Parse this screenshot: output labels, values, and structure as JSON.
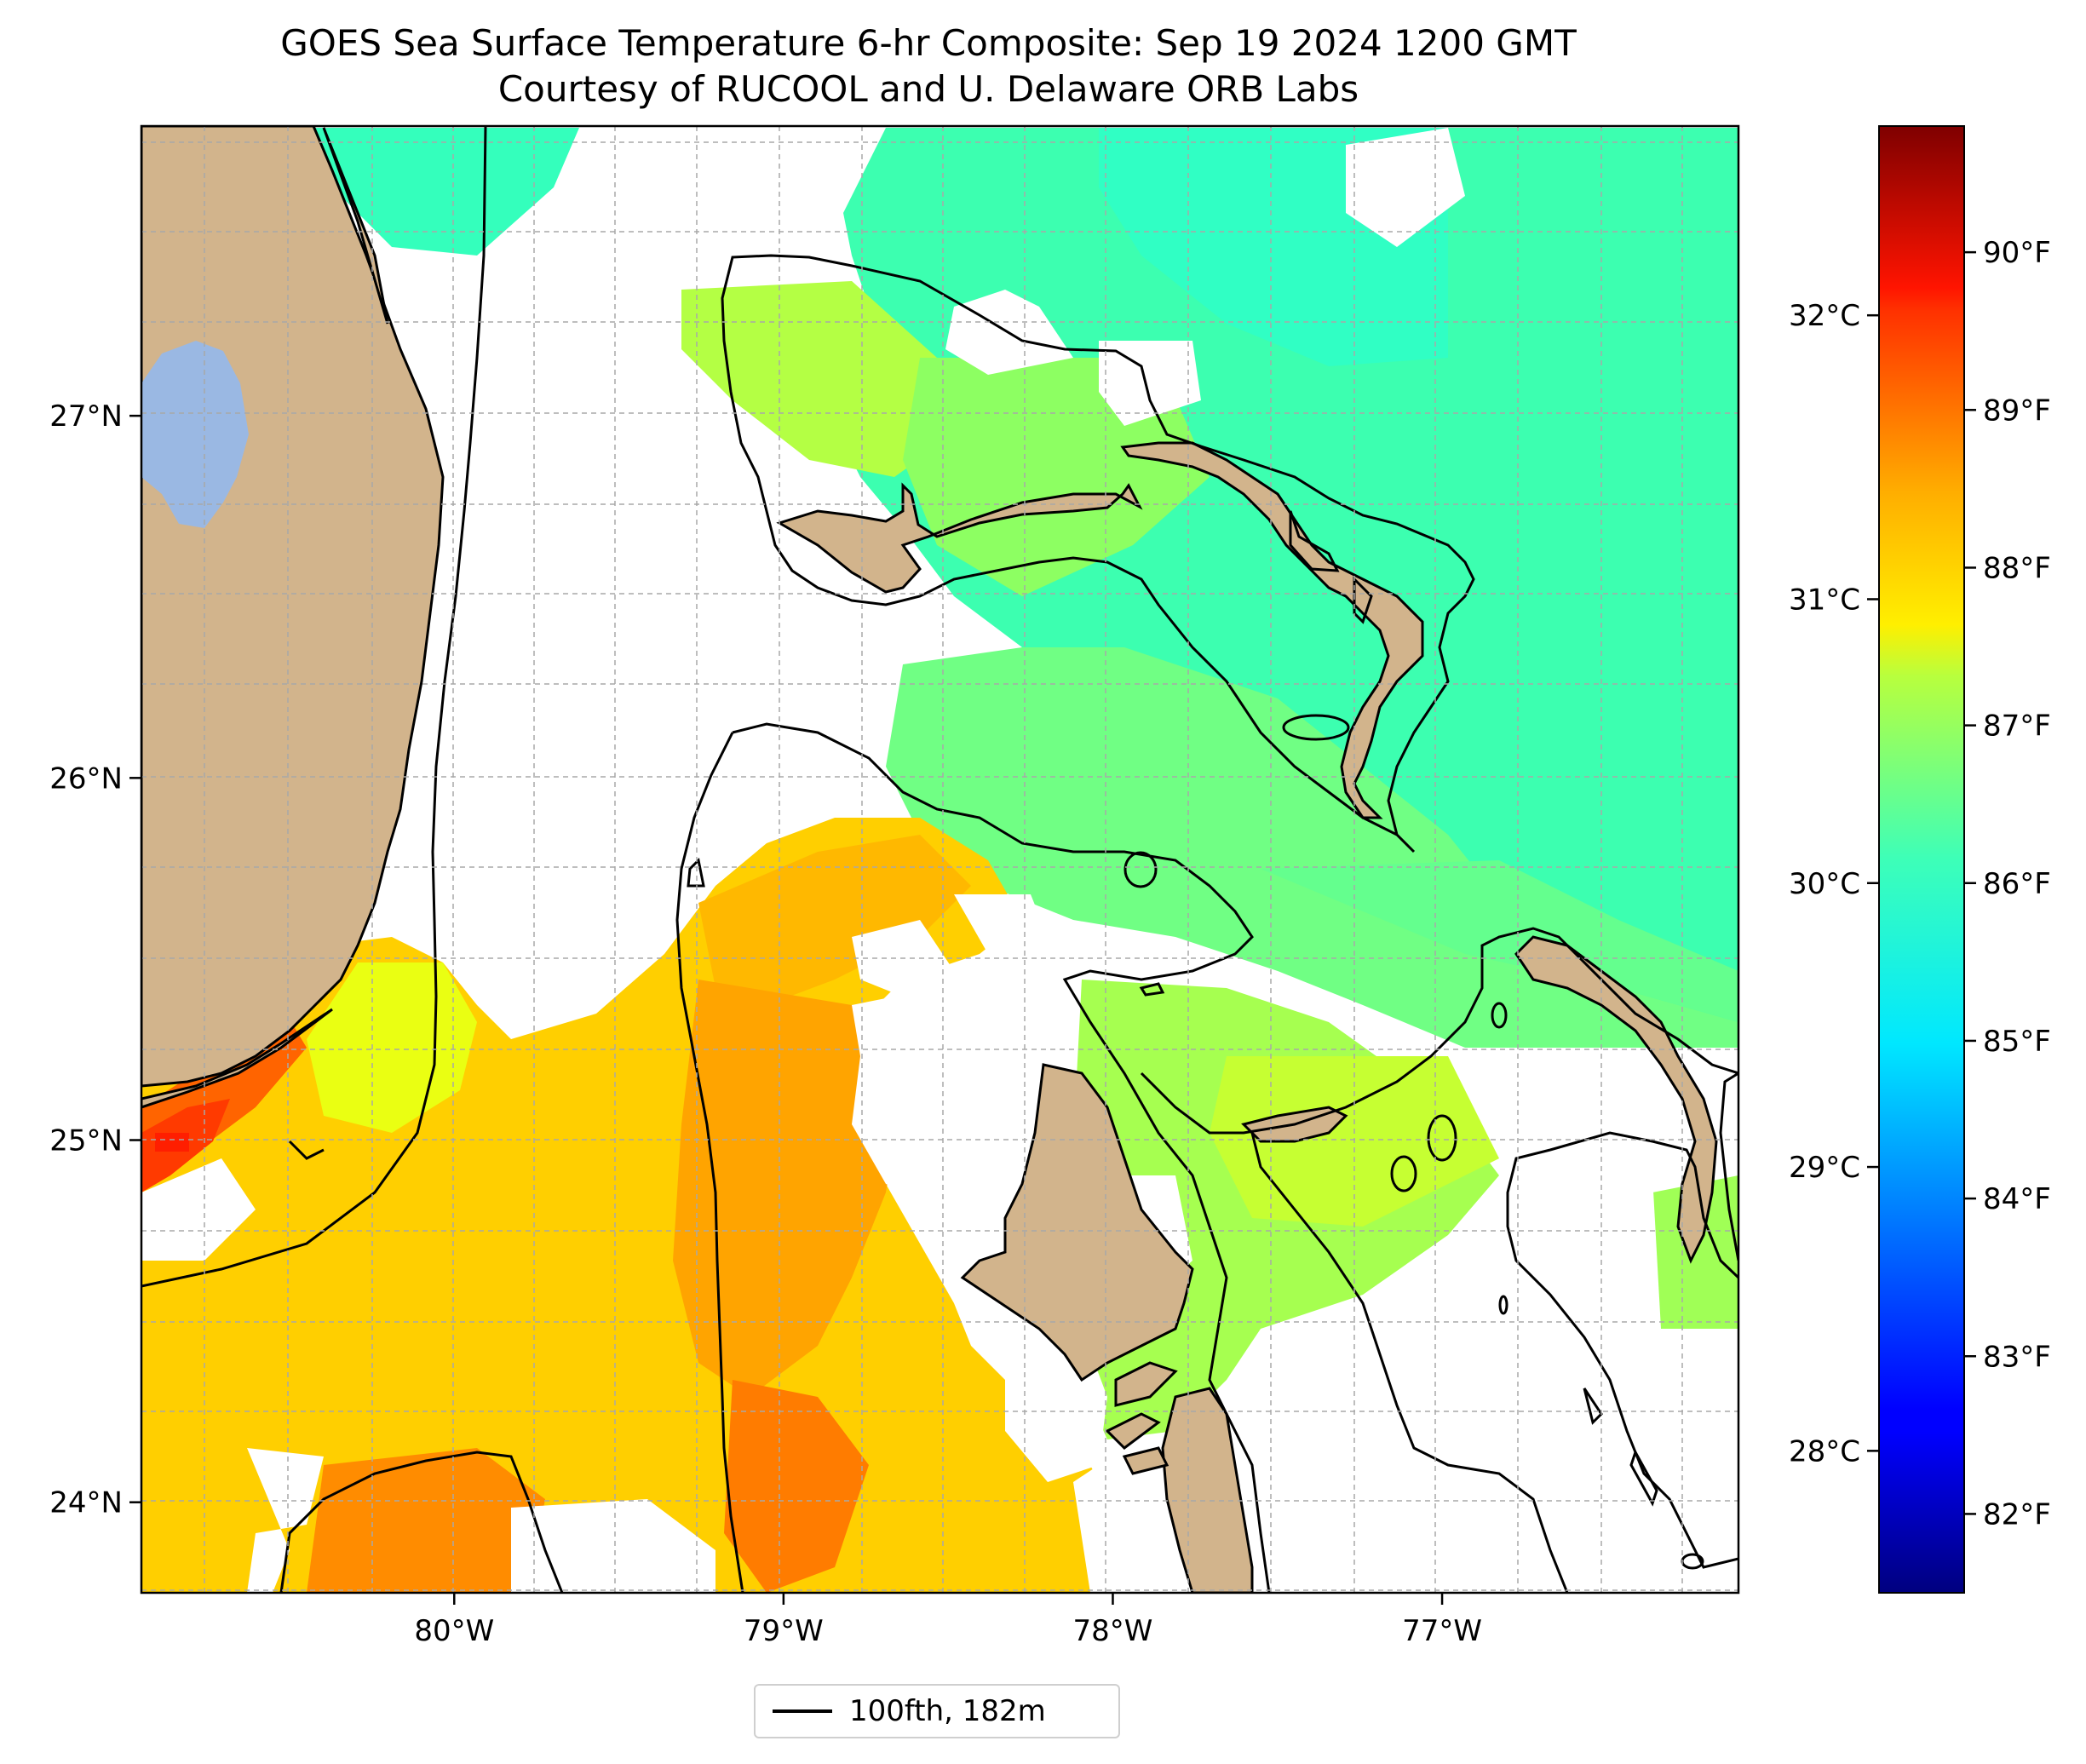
{
  "title": {
    "line1": "GOES Sea Surface Temperature 6-hr Composite: Sep 19 2024 1200 GMT",
    "line2": "Courtesy of RUCOOL and U. Delaware ORB Labs"
  },
  "map": {
    "lon_range": [
      -80.95,
      -76.1
    ],
    "lat_range": [
      23.75,
      27.8
    ],
    "lon_ticks": [
      {
        "value": -80,
        "label": "80°W"
      },
      {
        "value": -79,
        "label": "79°W"
      },
      {
        "value": -78,
        "label": "78°W"
      },
      {
        "value": -77,
        "label": "77°W"
      }
    ],
    "lat_ticks": [
      {
        "value": 24,
        "label": "24°N"
      },
      {
        "value": 25,
        "label": "25°N"
      },
      {
        "value": 26,
        "label": "26°N"
      },
      {
        "value": 27,
        "label": "27°N"
      }
    ],
    "colors": {
      "land": "#d2b48c",
      "lake": "#9ab8e3",
      "nodata": "#ffffff",
      "contour": "#000000"
    }
  },
  "colorbar": {
    "celsius_ticks": [
      {
        "value": 28,
        "label": "28°C"
      },
      {
        "value": 29,
        "label": "29°C"
      },
      {
        "value": 30,
        "label": "30°C"
      },
      {
        "value": 31,
        "label": "31°C"
      },
      {
        "value": 32,
        "label": "32°C"
      }
    ],
    "fahrenheit_ticks": [
      {
        "value": 82,
        "label": "82°F"
      },
      {
        "value": 83,
        "label": "83°F"
      },
      {
        "value": 84,
        "label": "84°F"
      },
      {
        "value": 85,
        "label": "85°F"
      },
      {
        "value": 86,
        "label": "86°F"
      },
      {
        "value": 87,
        "label": "87°F"
      },
      {
        "value": 88,
        "label": "88°F"
      },
      {
        "value": 89,
        "label": "89°F"
      },
      {
        "value": 90,
        "label": "90°F"
      }
    ],
    "range_f": [
      81.5,
      90.8
    ],
    "colormap": "jet"
  },
  "legend": {
    "label": "100fth, 182m"
  }
}
